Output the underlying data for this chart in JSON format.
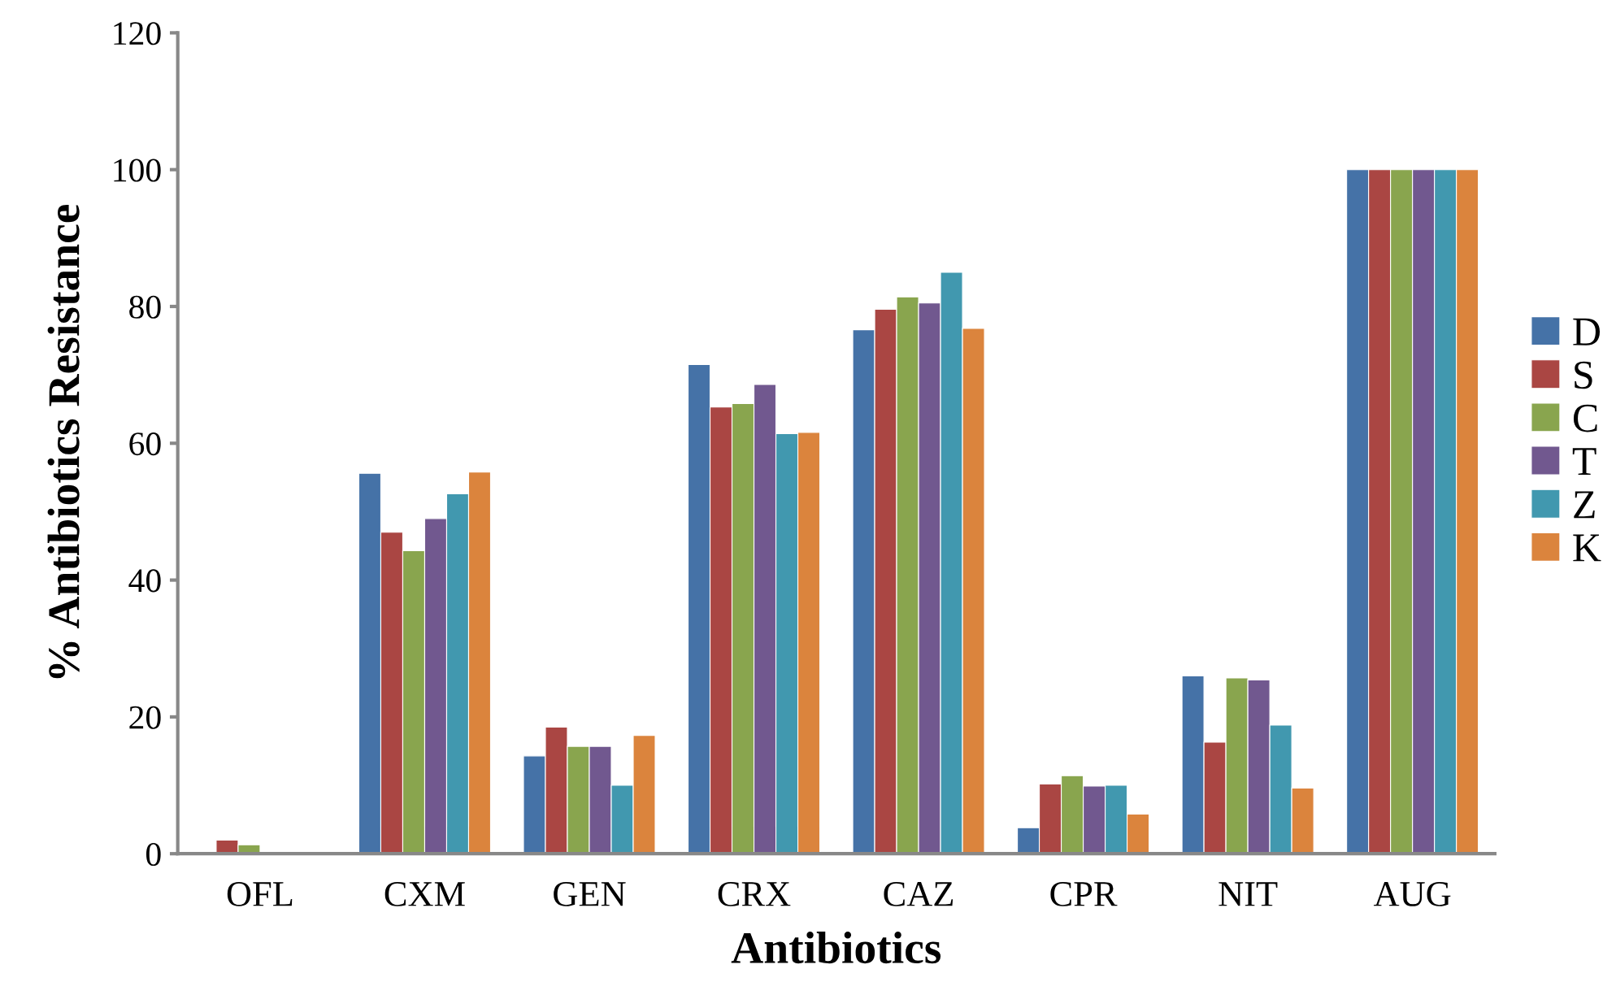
{
  "chart_data": {
    "type": "bar",
    "xlabel": "Antibiotics",
    "ylabel": "% Antibiotics Resistance",
    "categories": [
      "OFL",
      "CXM",
      "GEN",
      "CRX",
      "CAZ",
      "CPR",
      "NIT",
      "AUG"
    ],
    "series": [
      {
        "name": "D",
        "color": "#4572a7",
        "values": [
          null,
          55.6,
          14.3,
          71.5,
          76.6,
          3.8,
          26,
          100
        ]
      },
      {
        "name": "S",
        "color": "#aa4643",
        "values": [
          2,
          47,
          18.5,
          65.3,
          79.6,
          10.2,
          16.3,
          100
        ]
      },
      {
        "name": "C",
        "color": "#89a54e",
        "values": [
          1.3,
          44.3,
          15.7,
          65.8,
          81.4,
          11.4,
          25.7,
          100
        ]
      },
      {
        "name": "T",
        "color": "#71588f",
        "values": [
          null,
          49,
          15.7,
          68.6,
          80.5,
          9.9,
          25.4,
          100
        ]
      },
      {
        "name": "Z",
        "color": "#4198af",
        "values": [
          null,
          52.6,
          10,
          61.4,
          85,
          10,
          18.8,
          100
        ]
      },
      {
        "name": "K",
        "color": "#db843d",
        "values": [
          null,
          55.8,
          17.3,
          61.6,
          76.8,
          5.8,
          9.6,
          100
        ]
      }
    ],
    "ylim": [
      0,
      120
    ],
    "yticks": [
      0,
      20,
      40,
      60,
      80,
      100,
      120
    ],
    "grid": false,
    "legend": "right"
  }
}
